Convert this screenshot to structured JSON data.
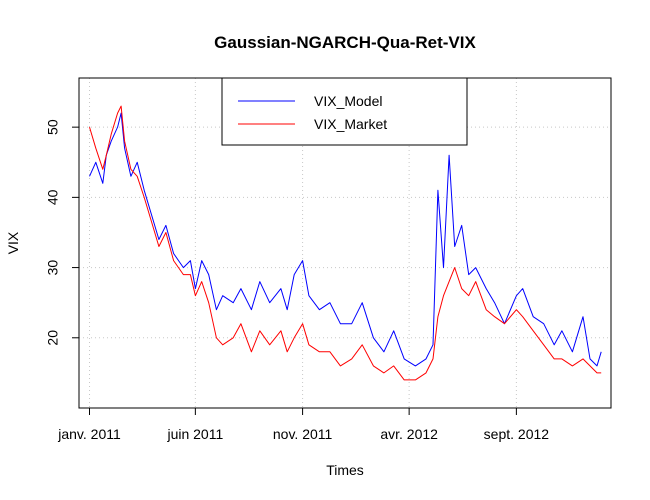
{
  "chart_data": {
    "type": "line",
    "title": "Gaussian-NGARCH-Qua-Ret-VIX",
    "xlabel": "Times",
    "ylabel": "VIX",
    "xlim": [
      "2010-12-17",
      "2013-01-14"
    ],
    "ylim": [
      10,
      57
    ],
    "x_ticks": [
      {
        "date": "2011-01-01",
        "label": "janv. 2011"
      },
      {
        "date": "2011-06-01",
        "label": "juin 2011"
      },
      {
        "date": "2011-11-01",
        "label": "nov. 2011"
      },
      {
        "date": "2012-04-01",
        "label": "avr. 2012"
      },
      {
        "date": "2012-09-01",
        "label": "sept. 2012"
      }
    ],
    "y_ticks": [
      20,
      30,
      40,
      50
    ],
    "grid": true,
    "legend_position": "top-center",
    "colors": {
      "model": "#0000ff",
      "market": "#ff0000"
    },
    "series": [
      {
        "name": "VIX_Model",
        "color": "#0000ff",
        "points": [
          [
            "2011-01-01",
            43
          ],
          [
            "2011-01-10",
            45
          ],
          [
            "2011-01-20",
            42
          ],
          [
            "2011-01-25",
            46
          ],
          [
            "2011-02-01",
            48
          ],
          [
            "2011-02-10",
            50
          ],
          [
            "2011-02-15",
            52
          ],
          [
            "2011-02-20",
            47
          ],
          [
            "2011-03-01",
            43
          ],
          [
            "2011-03-10",
            45
          ],
          [
            "2011-03-20",
            41
          ],
          [
            "2011-04-01",
            37
          ],
          [
            "2011-04-10",
            34
          ],
          [
            "2011-04-20",
            36
          ],
          [
            "2011-05-01",
            32
          ],
          [
            "2011-05-15",
            30
          ],
          [
            "2011-05-25",
            31
          ],
          [
            "2011-06-01",
            27
          ],
          [
            "2011-06-10",
            31
          ],
          [
            "2011-06-20",
            29
          ],
          [
            "2011-07-01",
            24
          ],
          [
            "2011-07-10",
            26
          ],
          [
            "2011-07-25",
            25
          ],
          [
            "2011-08-05",
            27
          ],
          [
            "2011-08-20",
            24
          ],
          [
            "2011-09-01",
            28
          ],
          [
            "2011-09-15",
            25
          ],
          [
            "2011-10-01",
            27
          ],
          [
            "2011-10-10",
            24
          ],
          [
            "2011-10-20",
            29
          ],
          [
            "2011-11-01",
            31
          ],
          [
            "2011-11-10",
            26
          ],
          [
            "2011-11-25",
            24
          ],
          [
            "2011-12-10",
            25
          ],
          [
            "2011-12-25",
            22
          ],
          [
            "2012-01-10",
            22
          ],
          [
            "2012-01-25",
            25
          ],
          [
            "2012-02-10",
            20
          ],
          [
            "2012-02-25",
            18
          ],
          [
            "2012-03-10",
            21
          ],
          [
            "2012-03-25",
            17
          ],
          [
            "2012-04-10",
            16
          ],
          [
            "2012-04-25",
            17
          ],
          [
            "2012-05-05",
            19
          ],
          [
            "2012-05-12",
            41
          ],
          [
            "2012-05-20",
            30
          ],
          [
            "2012-05-28",
            46
          ],
          [
            "2012-06-05",
            33
          ],
          [
            "2012-06-15",
            36
          ],
          [
            "2012-06-25",
            29
          ],
          [
            "2012-07-05",
            30
          ],
          [
            "2012-07-20",
            27
          ],
          [
            "2012-08-01",
            25
          ],
          [
            "2012-08-15",
            22
          ],
          [
            "2012-09-01",
            26
          ],
          [
            "2012-09-10",
            27
          ],
          [
            "2012-09-25",
            23
          ],
          [
            "2012-10-10",
            22
          ],
          [
            "2012-10-25",
            19
          ],
          [
            "2012-11-05",
            21
          ],
          [
            "2012-11-20",
            18
          ],
          [
            "2012-12-05",
            23
          ],
          [
            "2012-12-15",
            17
          ],
          [
            "2012-12-25",
            16
          ],
          [
            "2012-12-31",
            18
          ]
        ]
      },
      {
        "name": "VIX_Market",
        "color": "#ff0000",
        "points": [
          [
            "2011-01-01",
            50
          ],
          [
            "2011-01-10",
            47
          ],
          [
            "2011-01-20",
            44
          ],
          [
            "2011-01-25",
            46
          ],
          [
            "2011-02-01",
            49
          ],
          [
            "2011-02-10",
            52
          ],
          [
            "2011-02-15",
            53
          ],
          [
            "2011-02-20",
            48
          ],
          [
            "2011-03-01",
            44
          ],
          [
            "2011-03-10",
            43
          ],
          [
            "2011-03-20",
            40
          ],
          [
            "2011-04-01",
            36
          ],
          [
            "2011-04-10",
            33
          ],
          [
            "2011-04-20",
            35
          ],
          [
            "2011-05-01",
            31
          ],
          [
            "2011-05-15",
            29
          ],
          [
            "2011-05-25",
            29
          ],
          [
            "2011-06-01",
            26
          ],
          [
            "2011-06-10",
            28
          ],
          [
            "2011-06-20",
            25
          ],
          [
            "2011-07-01",
            20
          ],
          [
            "2011-07-10",
            19
          ],
          [
            "2011-07-25",
            20
          ],
          [
            "2011-08-05",
            22
          ],
          [
            "2011-08-20",
            18
          ],
          [
            "2011-09-01",
            21
          ],
          [
            "2011-09-15",
            19
          ],
          [
            "2011-10-01",
            21
          ],
          [
            "2011-10-10",
            18
          ],
          [
            "2011-10-20",
            20
          ],
          [
            "2011-11-01",
            22
          ],
          [
            "2011-11-10",
            19
          ],
          [
            "2011-11-25",
            18
          ],
          [
            "2011-12-10",
            18
          ],
          [
            "2011-12-25",
            16
          ],
          [
            "2012-01-10",
            17
          ],
          [
            "2012-01-25",
            19
          ],
          [
            "2012-02-10",
            16
          ],
          [
            "2012-02-25",
            15
          ],
          [
            "2012-03-10",
            16
          ],
          [
            "2012-03-25",
            14
          ],
          [
            "2012-04-10",
            14
          ],
          [
            "2012-04-25",
            15
          ],
          [
            "2012-05-05",
            17
          ],
          [
            "2012-05-12",
            23
          ],
          [
            "2012-05-20",
            26
          ],
          [
            "2012-05-28",
            28
          ],
          [
            "2012-06-05",
            30
          ],
          [
            "2012-06-15",
            27
          ],
          [
            "2012-06-25",
            26
          ],
          [
            "2012-07-05",
            28
          ],
          [
            "2012-07-20",
            24
          ],
          [
            "2012-08-01",
            23
          ],
          [
            "2012-08-15",
            22
          ],
          [
            "2012-09-01",
            24
          ],
          [
            "2012-09-10",
            23
          ],
          [
            "2012-09-25",
            21
          ],
          [
            "2012-10-10",
            19
          ],
          [
            "2012-10-25",
            17
          ],
          [
            "2012-11-05",
            17
          ],
          [
            "2012-11-20",
            16
          ],
          [
            "2012-12-05",
            17
          ],
          [
            "2012-12-15",
            16
          ],
          [
            "2012-12-25",
            15
          ],
          [
            "2012-12-31",
            15
          ]
        ]
      }
    ]
  }
}
